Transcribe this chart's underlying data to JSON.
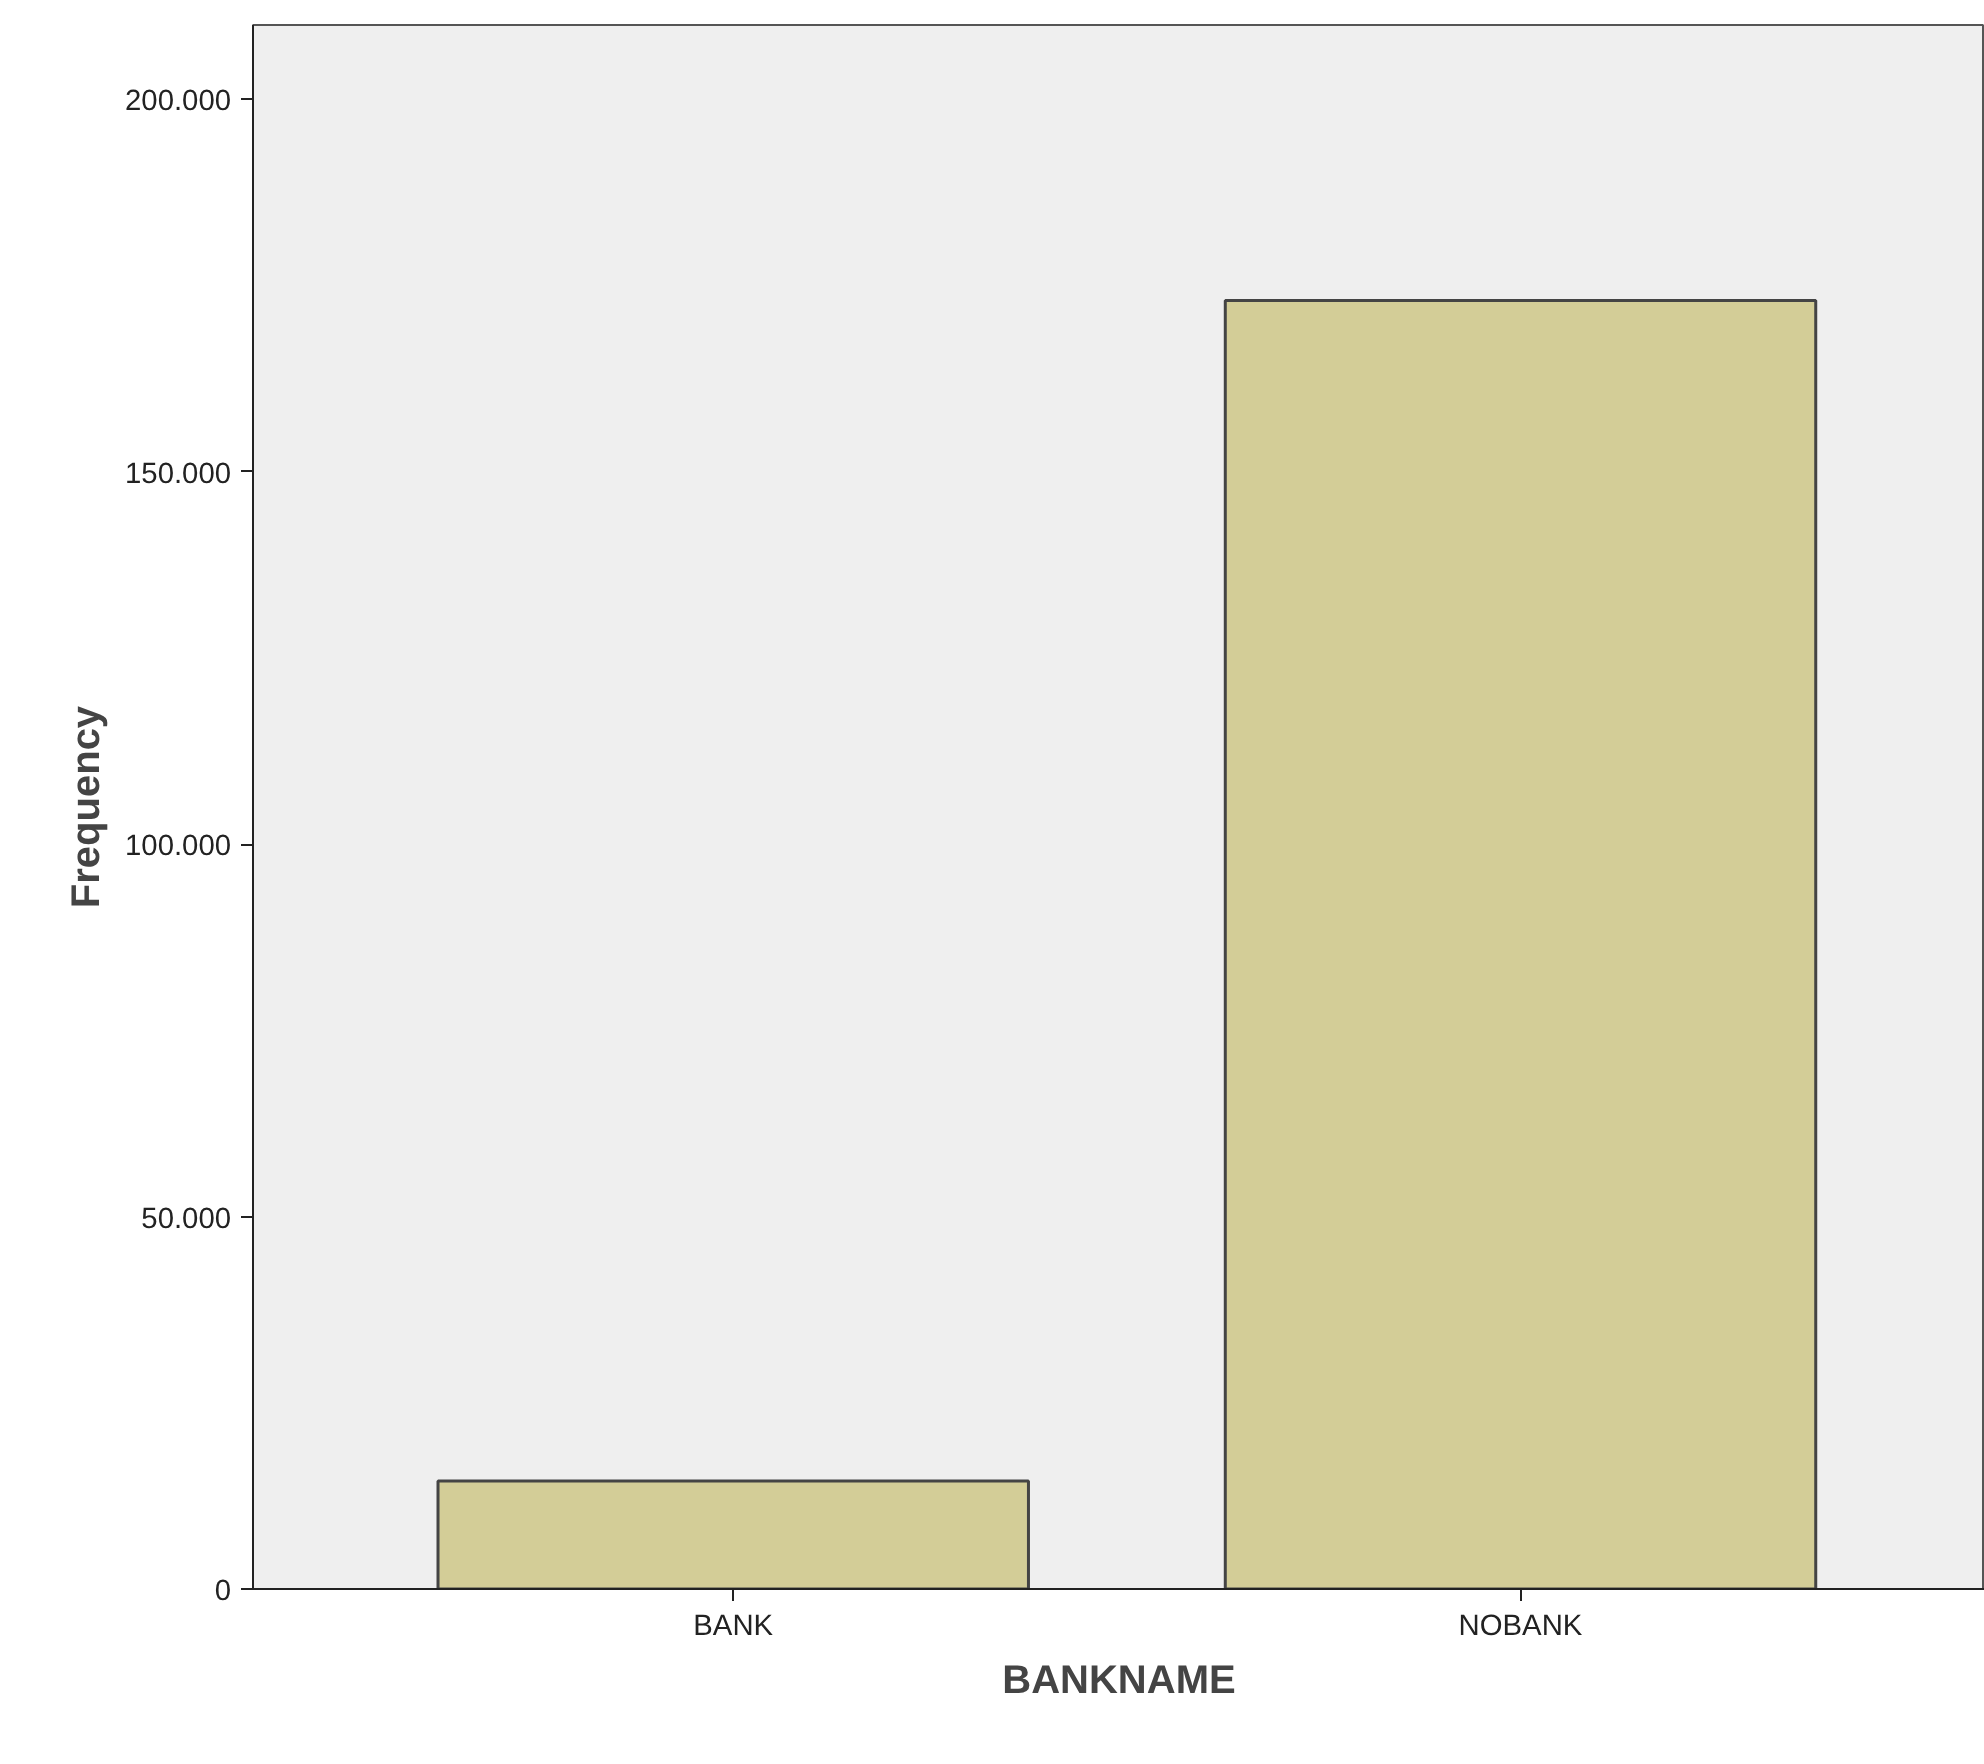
{
  "chart_data": {
    "type": "bar",
    "xlabel": "BANKNAME",
    "ylabel": "Frequency",
    "categories": [
      "BANK",
      "NOBANK"
    ],
    "values": [
      14500,
      173000
    ],
    "color": "#d3cd97",
    "ylim": [
      0,
      210000
    ],
    "yticks": [
      0,
      {
        "value": 50000,
        "label": "50.000"
      },
      {
        "value": 100000,
        "label": "100.000"
      },
      {
        "value": 150000,
        "label": "150.000"
      },
      {
        "value": 200000,
        "label": "200.000"
      }
    ],
    "grid": false
  }
}
